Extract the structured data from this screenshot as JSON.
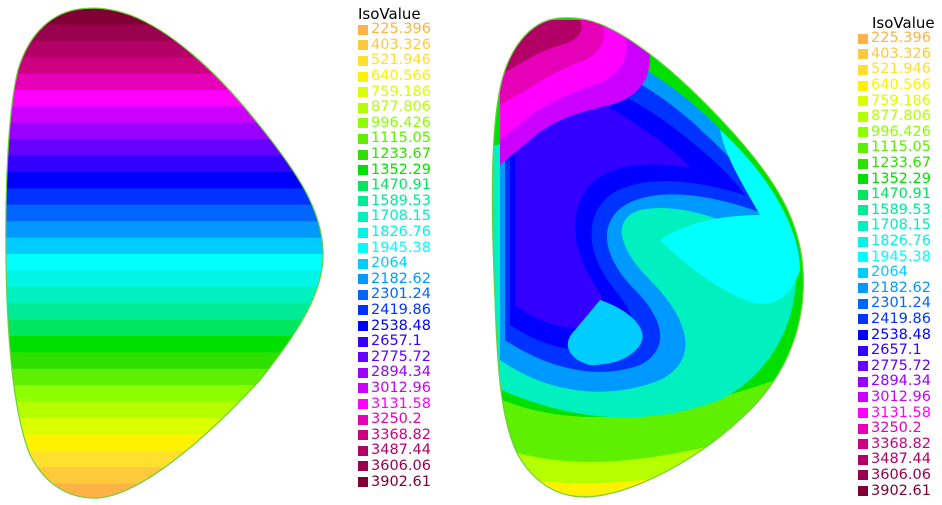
{
  "plots": [
    {
      "legend": {
        "title": "IsoValue",
        "levels": [
          {
            "value": "225.396",
            "color": "#ffb347"
          },
          {
            "value": "403.326",
            "color": "#ffc93c"
          },
          {
            "value": "521.946",
            "color": "#ffe02e"
          },
          {
            "value": "640.566",
            "color": "#fff200"
          },
          {
            "value": "759.186",
            "color": "#d9ff00"
          },
          {
            "value": "877.806",
            "color": "#b4ff00"
          },
          {
            "value": "996.426",
            "color": "#8cff00"
          },
          {
            "value": "1115.05",
            "color": "#5ef000"
          },
          {
            "value": "1233.67",
            "color": "#2ee000"
          },
          {
            "value": "1352.29",
            "color": "#00e000"
          },
          {
            "value": "1470.91",
            "color": "#00e660"
          },
          {
            "value": "1589.53",
            "color": "#00eb96"
          },
          {
            "value": "1708.15",
            "color": "#00f0c0"
          },
          {
            "value": "1826.76",
            "color": "#00f5e6"
          },
          {
            "value": "1945.38",
            "color": "#00ffff"
          },
          {
            "value": "2064",
            "color": "#00ccff"
          },
          {
            "value": "2182.62",
            "color": "#0099ff"
          },
          {
            "value": "2301.24",
            "color": "#0066ff"
          },
          {
            "value": "2419.86",
            "color": "#0033ff"
          },
          {
            "value": "2538.48",
            "color": "#0000ff"
          },
          {
            "value": "2657.1",
            "color": "#3300ff"
          },
          {
            "value": "2775.72",
            "color": "#6600ff"
          },
          {
            "value": "2894.34",
            "color": "#9900ff"
          },
          {
            "value": "3012.96",
            "color": "#cc00ff"
          },
          {
            "value": "3131.58",
            "color": "#ff00ff"
          },
          {
            "value": "3250.2",
            "color": "#e600b8"
          },
          {
            "value": "3368.82",
            "color": "#cc0080"
          },
          {
            "value": "3487.44",
            "color": "#b30066"
          },
          {
            "value": "3606.06",
            "color": "#99004d"
          },
          {
            "value": "3902.61",
            "color": "#800033"
          }
        ]
      }
    },
    {
      "legend": {
        "title": "IsoValue",
        "levels": [
          {
            "value": "225.396",
            "color": "#ffb347"
          },
          {
            "value": "403.326",
            "color": "#ffc93c"
          },
          {
            "value": "521.946",
            "color": "#ffe02e"
          },
          {
            "value": "640.566",
            "color": "#fff200"
          },
          {
            "value": "759.186",
            "color": "#d9ff00"
          },
          {
            "value": "877.806",
            "color": "#b4ff00"
          },
          {
            "value": "996.426",
            "color": "#8cff00"
          },
          {
            "value": "1115.05",
            "color": "#5ef000"
          },
          {
            "value": "1233.67",
            "color": "#2ee000"
          },
          {
            "value": "1352.29",
            "color": "#00e000"
          },
          {
            "value": "1470.91",
            "color": "#00e660"
          },
          {
            "value": "1589.53",
            "color": "#00eb96"
          },
          {
            "value": "1708.15",
            "color": "#00f0c0"
          },
          {
            "value": "1826.76",
            "color": "#00f5e6"
          },
          {
            "value": "1945.38",
            "color": "#00ffff"
          },
          {
            "value": "2064",
            "color": "#00ccff"
          },
          {
            "value": "2182.62",
            "color": "#0099ff"
          },
          {
            "value": "2301.24",
            "color": "#0066ff"
          },
          {
            "value": "2419.86",
            "color": "#0033ff"
          },
          {
            "value": "2538.48",
            "color": "#0000ff"
          },
          {
            "value": "2657.1",
            "color": "#3300ff"
          },
          {
            "value": "2775.72",
            "color": "#6600ff"
          },
          {
            "value": "2894.34",
            "color": "#9900ff"
          },
          {
            "value": "3012.96",
            "color": "#cc00ff"
          },
          {
            "value": "3131.58",
            "color": "#ff00ff"
          },
          {
            "value": "3250.2",
            "color": "#e600b8"
          },
          {
            "value": "3368.82",
            "color": "#cc0080"
          },
          {
            "value": "3487.44",
            "color": "#b30066"
          },
          {
            "value": "3606.06",
            "color": "#99004d"
          },
          {
            "value": "3902.61",
            "color": "#800033"
          }
        ]
      }
    }
  ]
}
